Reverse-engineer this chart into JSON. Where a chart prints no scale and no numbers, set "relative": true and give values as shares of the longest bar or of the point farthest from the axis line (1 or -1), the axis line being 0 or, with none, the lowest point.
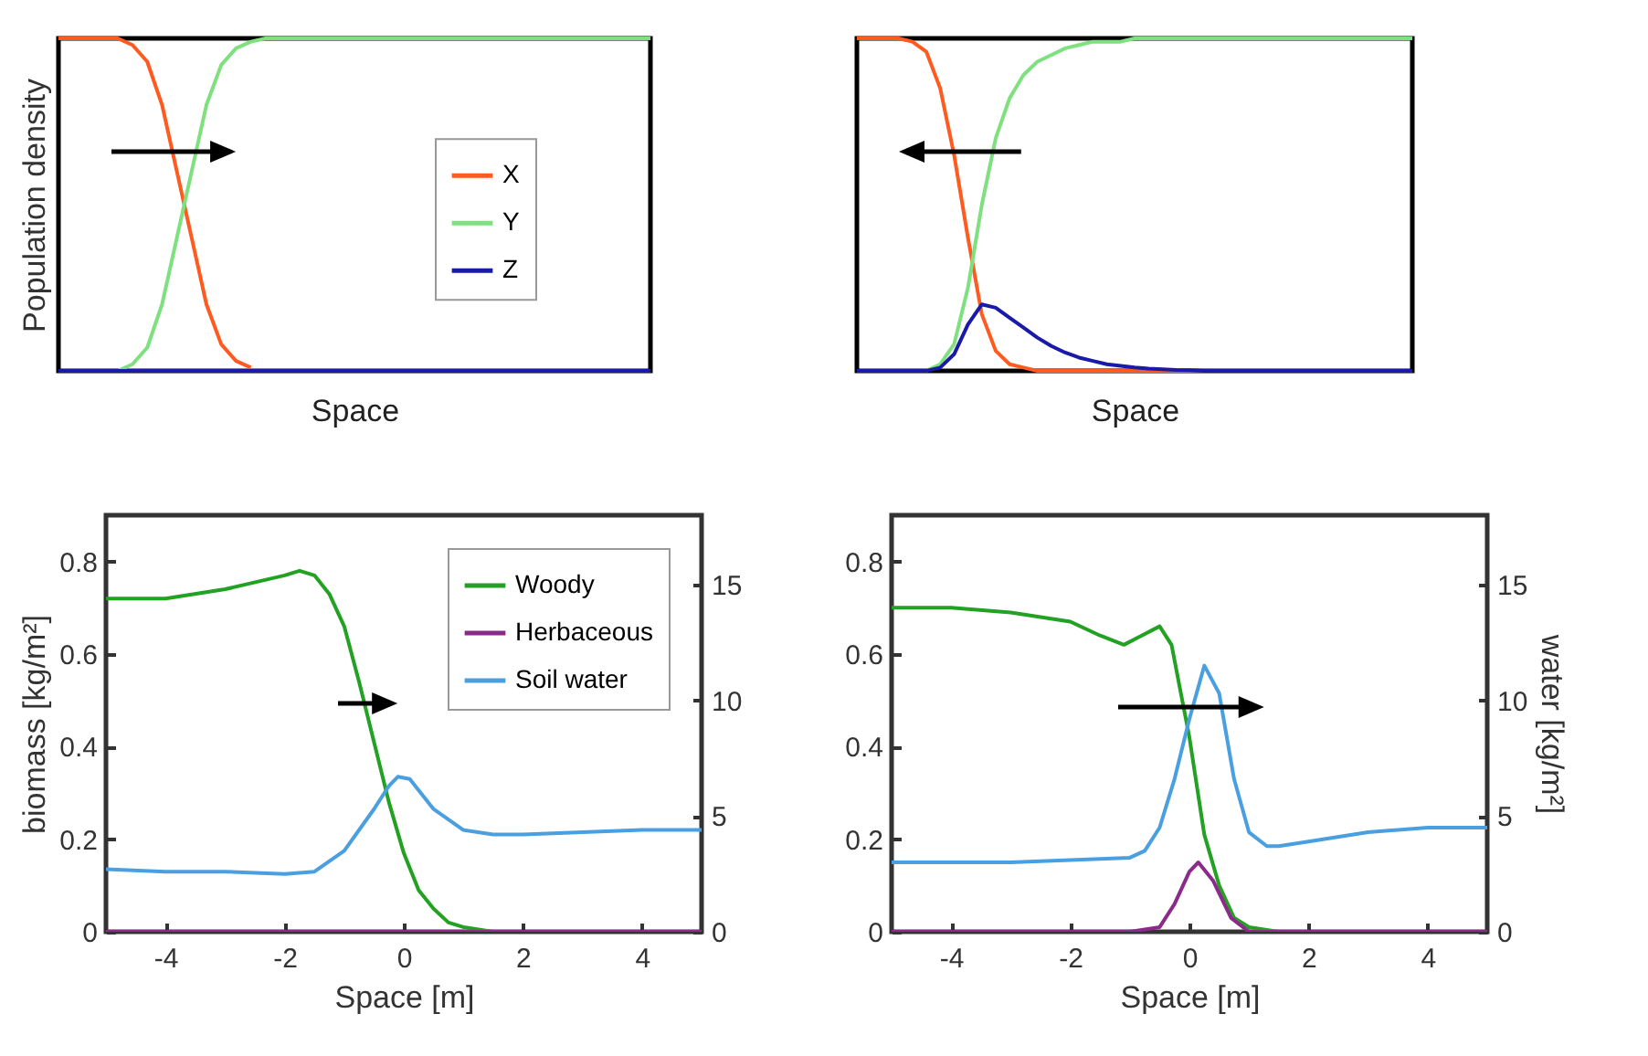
{
  "chart_data": [
    {
      "type": "line",
      "relative": true,
      "xlabel": "Space",
      "ylabel": "Population density",
      "tick_labels": false,
      "legend": "right",
      "categories": [
        null,
        null,
        null,
        null,
        null,
        null,
        null,
        null,
        null,
        null,
        null,
        null,
        null,
        null,
        null,
        null,
        null,
        null,
        null,
        null,
        null,
        null,
        null,
        null,
        null,
        null,
        null,
        null,
        null,
        null,
        null,
        null,
        null,
        null,
        null,
        null,
        null,
        null,
        null,
        null,
        null
      ],
      "series": [
        {
          "name": "X",
          "color": "#ff5a1f",
          "values": [
            1,
            1,
            1,
            1,
            1,
            0.98,
            0.93,
            0.8,
            0.6,
            0.4,
            0.2,
            0.08,
            0.03,
            0.01,
            null,
            null,
            null,
            null,
            null,
            null,
            null,
            null,
            null,
            null,
            null,
            null,
            null,
            null,
            null,
            null,
            null,
            null,
            null,
            null,
            null,
            null,
            null,
            null,
            null,
            null,
            null
          ]
        },
        {
          "name": "Y",
          "color": "#7ee07e",
          "values": [
            null,
            null,
            null,
            null,
            0,
            0.02,
            0.07,
            0.2,
            0.4,
            0.6,
            0.8,
            0.92,
            0.97,
            0.99,
            1,
            1,
            1,
            1,
            1,
            1,
            1,
            1,
            1,
            1,
            1,
            1,
            1,
            1,
            1,
            1,
            1,
            1,
            1,
            1,
            1,
            1,
            1,
            1,
            1,
            1,
            1
          ]
        },
        {
          "name": "Z",
          "color": "#1a1aa8",
          "values": [
            0,
            0,
            0,
            0,
            0,
            0,
            0,
            0,
            0,
            0,
            0,
            0,
            0,
            0,
            0,
            0,
            0,
            0,
            0,
            0,
            0,
            0,
            0,
            0,
            0,
            0,
            0,
            0,
            0,
            0,
            0,
            0,
            0,
            0,
            0,
            0,
            0,
            0,
            0,
            0,
            0
          ]
        }
      ]
    },
    {
      "type": "line",
      "relative": true,
      "xlabel": "Space",
      "tick_labels": false,
      "categories": [
        null,
        null,
        null,
        null,
        null,
        null,
        null,
        null,
        null,
        null,
        null,
        null,
        null,
        null,
        null,
        null,
        null,
        null,
        null,
        null,
        null,
        null,
        null,
        null,
        null,
        null,
        null,
        null,
        null,
        null,
        null,
        null,
        null,
        null,
        null,
        null,
        null,
        null,
        null,
        null,
        null
      ],
      "series": [
        {
          "color": "#ff5a1f",
          "values": [
            1,
            1,
            1,
            1,
            0.99,
            0.96,
            0.85,
            0.65,
            0.4,
            0.17,
            0.06,
            0.02,
            0.01,
            0,
            0,
            0,
            0,
            0,
            0,
            0,
            0,
            0,
            0,
            0,
            0,
            0,
            null,
            null,
            null,
            null,
            null,
            null,
            null,
            null,
            null,
            null,
            null,
            null,
            null,
            null,
            null
          ]
        },
        {
          "color": "#7ee07e",
          "values": [
            null,
            null,
            null,
            null,
            null,
            0,
            0.02,
            0.08,
            0.25,
            0.5,
            0.7,
            0.82,
            0.89,
            0.93,
            0.95,
            0.97,
            0.98,
            0.99,
            0.99,
            0.99,
            1,
            1,
            1,
            1,
            1,
            1,
            1,
            1,
            1,
            1,
            1,
            1,
            1,
            1,
            1,
            1,
            1,
            1,
            1,
            1,
            1
          ]
        },
        {
          "color": "#1a1aa8",
          "values": [
            0,
            0,
            0,
            0,
            0,
            0,
            0.01,
            0.05,
            0.14,
            0.2,
            0.19,
            0.16,
            0.13,
            0.1,
            0.075,
            0.055,
            0.04,
            0.03,
            0.02,
            0.015,
            0.01,
            0.007,
            0.005,
            0.003,
            0.002,
            0,
            0,
            0,
            0,
            0,
            0,
            0,
            0,
            0,
            0,
            0,
            0,
            0,
            0,
            0,
            0
          ]
        }
      ]
    },
    {
      "type": "line",
      "xlabel": "Space [m]",
      "ylabel": "biomass [kg/m²]",
      "legend": "top right",
      "xlim": [
        -5,
        5
      ],
      "xticks": [
        -4,
        -2,
        0,
        2,
        4
      ],
      "ylim": [
        0,
        0.9
      ],
      "yticks": [
        0,
        0.2,
        0.4,
        0.6,
        0.8
      ],
      "y2lim": [
        0,
        18
      ],
      "y2ticks": [
        0,
        5,
        10,
        15
      ],
      "series": [
        {
          "name": "Woody",
          "color": "#22a122",
          "x": [
            -5,
            -4,
            -3,
            -2,
            -1.75,
            -1.5,
            -1.25,
            -1,
            -0.75,
            -0.5,
            -0.25,
            0,
            0.25,
            0.5,
            0.75,
            1,
            1.5,
            2
          ],
          "values": [
            0.72,
            0.72,
            0.74,
            0.77,
            0.78,
            0.77,
            0.73,
            0.66,
            0.54,
            0.41,
            0.28,
            0.17,
            0.09,
            0.05,
            0.02,
            0.01,
            0,
            0
          ]
        },
        {
          "name": "Herbaceous",
          "color": "#8b2a8b",
          "x": [
            -5,
            5
          ],
          "values": [
            0,
            0
          ]
        },
        {
          "name": "Soil water",
          "color": "#4a9fe0",
          "axis": "y2",
          "x": [
            -5,
            -4,
            -3,
            -2,
            -1.5,
            -1,
            -0.5,
            -0.25,
            -0.1,
            0.1,
            0.5,
            1,
            1.5,
            2,
            3,
            4,
            5
          ],
          "values": [
            2.7,
            2.6,
            2.6,
            2.5,
            2.6,
            3.5,
            5.3,
            6.3,
            6.7,
            6.6,
            5.3,
            4.4,
            4.2,
            4.2,
            4.3,
            4.4,
            4.4
          ]
        }
      ]
    },
    {
      "type": "line",
      "xlabel": "Space [m]",
      "y2label": "water [kg/m²]",
      "xlim": [
        -5,
        5
      ],
      "xticks": [
        -4,
        -2,
        0,
        2,
        4
      ],
      "ylim": [
        0,
        0.9
      ],
      "yticks": [
        0,
        0.2,
        0.4,
        0.6,
        0.8
      ],
      "y2lim": [
        0,
        18
      ],
      "y2ticks": [
        0,
        5,
        10,
        15
      ],
      "series": [
        {
          "color": "#22a122",
          "x": [
            -5,
            -4,
            -3,
            -2,
            -1.5,
            -1.1,
            -0.8,
            -0.5,
            -0.3,
            0,
            0.25,
            0.5,
            0.75,
            1,
            1.5,
            2
          ],
          "values": [
            0.7,
            0.7,
            0.69,
            0.67,
            0.64,
            0.62,
            0.64,
            0.66,
            0.62,
            0.42,
            0.21,
            0.1,
            0.03,
            0.01,
            0,
            0
          ]
        },
        {
          "color": "#8b2a8b",
          "x": [
            -5,
            -1,
            -0.5,
            -0.25,
            0,
            0.15,
            0.4,
            0.7,
            1,
            1.5,
            5
          ],
          "values": [
            0,
            0,
            0.01,
            0.06,
            0.13,
            0.15,
            0.11,
            0.03,
            0,
            0,
            0
          ]
        },
        {
          "color": "#4a9fe0",
          "axis": "y2",
          "x": [
            -5,
            -3,
            -1,
            -0.75,
            -0.5,
            -0.25,
            0,
            0.25,
            0.5,
            0.75,
            1,
            1.3,
            1.5,
            2,
            3,
            4,
            5
          ],
          "values": [
            3,
            3,
            3.2,
            3.5,
            4.5,
            6.6,
            9.2,
            11.5,
            10.3,
            6.6,
            4.3,
            3.7,
            3.7,
            3.9,
            4.3,
            4.5,
            4.5
          ]
        }
      ]
    }
  ]
}
